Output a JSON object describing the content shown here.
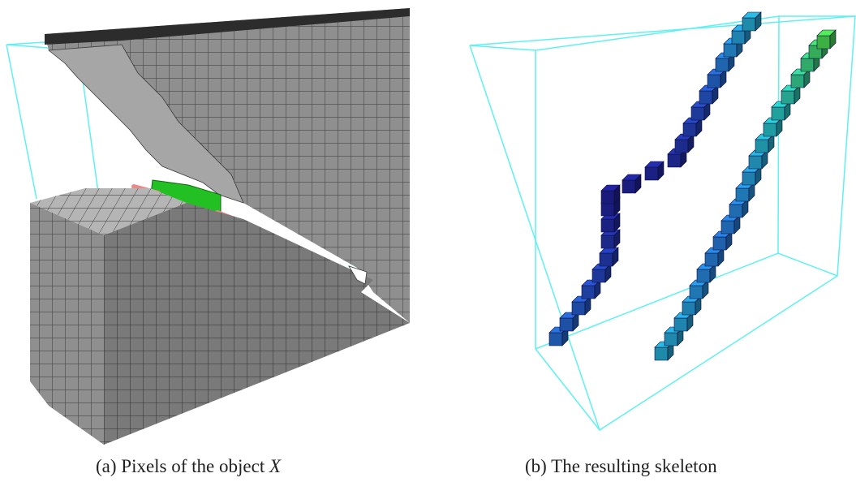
{
  "figure": {
    "panel_a": {
      "caption_label": "(a)",
      "caption_text": "Pixels of the object ",
      "caption_var": "X"
    },
    "panel_b": {
      "caption_label": "(b)",
      "caption_text": "The resulting skeleton"
    }
  },
  "colors": {
    "voxel_front": "#8c8c8c",
    "voxel_top": "#b8b8b8",
    "voxel_grid": "#3a3a3a",
    "bounding_box": "#5ff0f0",
    "highlight_green": "#22c022",
    "highlight_pink": "#e98a8a",
    "skeleton_gradient": [
      "#1a1a7a",
      "#1e3fa0",
      "#1f78b4",
      "#1fa0a0",
      "#3cb043"
    ]
  }
}
